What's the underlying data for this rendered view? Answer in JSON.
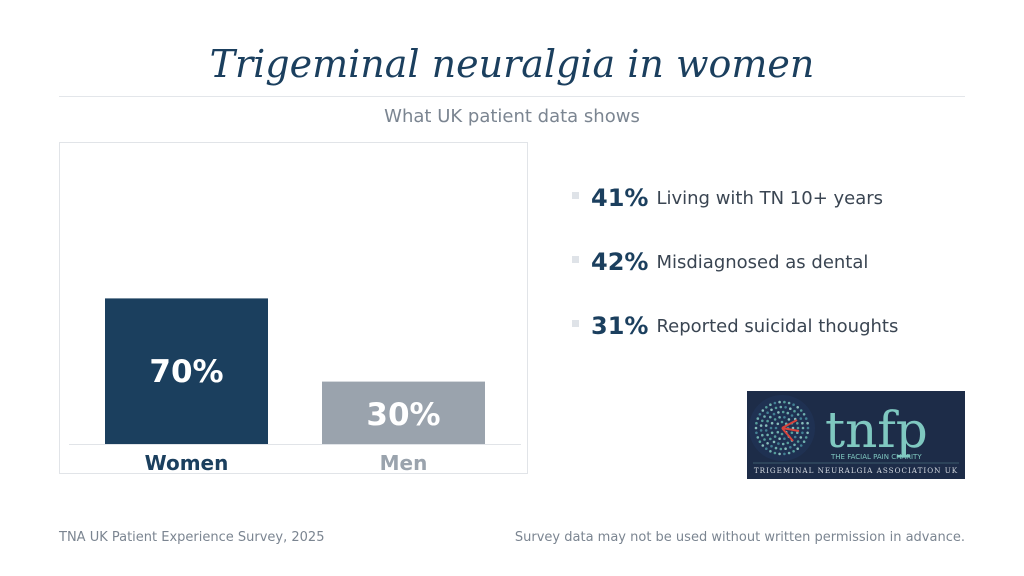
{
  "title": "Trigeminal neuralgia in women",
  "subtitle": "What UK patient data shows",
  "chart_data": {
    "type": "bar",
    "categories": [
      "Women",
      "Men"
    ],
    "values": [
      70,
      30
    ],
    "value_labels": [
      "70%",
      "30%"
    ],
    "ylim": [
      0,
      100
    ],
    "colors": [
      "#1b3f5e",
      "#9aa3ad"
    ],
    "label_colors": [
      "#1b3f5e",
      "#9aa3ad"
    ],
    "grid": false,
    "title": "",
    "xlabel": "",
    "ylabel": ""
  },
  "stats": [
    {
      "value": "41%",
      "label": "Living with TN 10+ years"
    },
    {
      "value": "42%",
      "label": "Misdiagnosed as dental"
    },
    {
      "value": "31%",
      "label": "Reported suicidal thoughts"
    }
  ],
  "logo": {
    "wordmark": "tnfp",
    "tagline": "THE FACIAL PAIN CHARITY",
    "org": "TRIGEMINAL NEURALGIA ASSOCIATION UK"
  },
  "footer": {
    "source": "TNA UK Patient Experience Survey, 2025",
    "notice": "Survey data may not be used without written permission in advance."
  },
  "colors": {
    "accent": "#1b3f5e",
    "muted": "#9aa3ad",
    "logo_bg": "#1d2c48",
    "logo_teal": "#7fc8c0"
  }
}
